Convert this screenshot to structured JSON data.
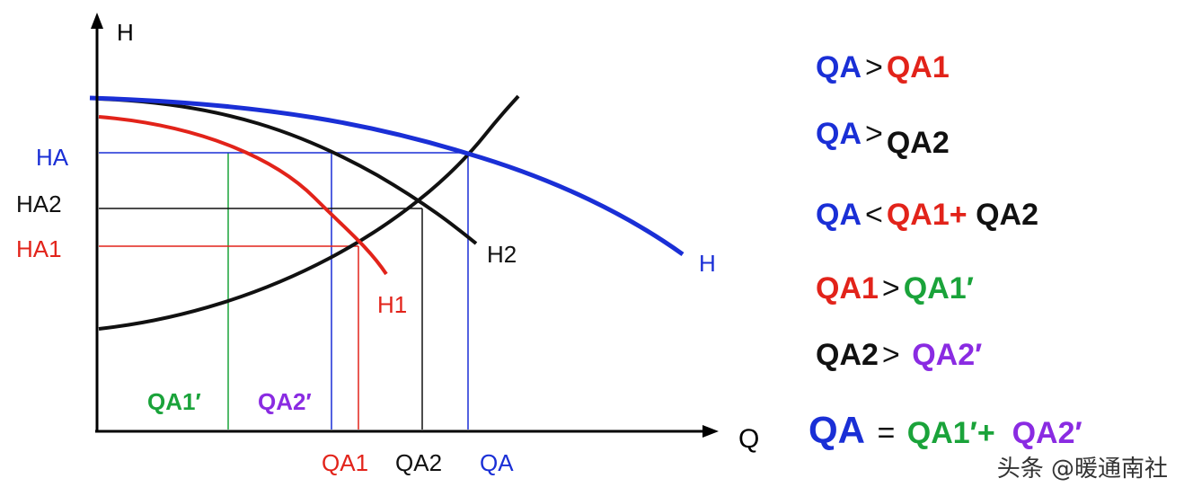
{
  "colors": {
    "blue": "#1a2fd6",
    "red": "#e2231a",
    "black": "#111111",
    "green": "#1aa33a",
    "purple": "#8a2be2",
    "axis": "#000000"
  },
  "axes": {
    "y": "H",
    "x": "Q"
  },
  "curves": {
    "h": "H",
    "h1": "H1",
    "h2": "H2"
  },
  "ylabels": {
    "ha": "HA",
    "ha2": "HA2",
    "ha1": "HA1"
  },
  "xlabels": {
    "qa1": "QA1",
    "qa2": "QA2",
    "qa": "QA",
    "qa1p": "QA1′",
    "qa2p": "QA2′"
  },
  "equations": {
    "e1": {
      "a": "QA",
      "op": ">",
      "b": "QA1"
    },
    "e2": {
      "a": "QA",
      "op": ">",
      "b": "QA2"
    },
    "e3": {
      "a": "QA",
      "op": "<",
      "b": "QA1+",
      "c": "QA2"
    },
    "e4": {
      "a": "QA1",
      "op": ">",
      "b": "QA1′"
    },
    "e5": {
      "a": "QA2",
      "op": ">",
      "b": "QA2′"
    },
    "e6": {
      "a": "QA",
      "op": "=",
      "b": "QA1′+",
      "c": "QA2′"
    }
  },
  "watermark": "头条 @暖通南社"
}
